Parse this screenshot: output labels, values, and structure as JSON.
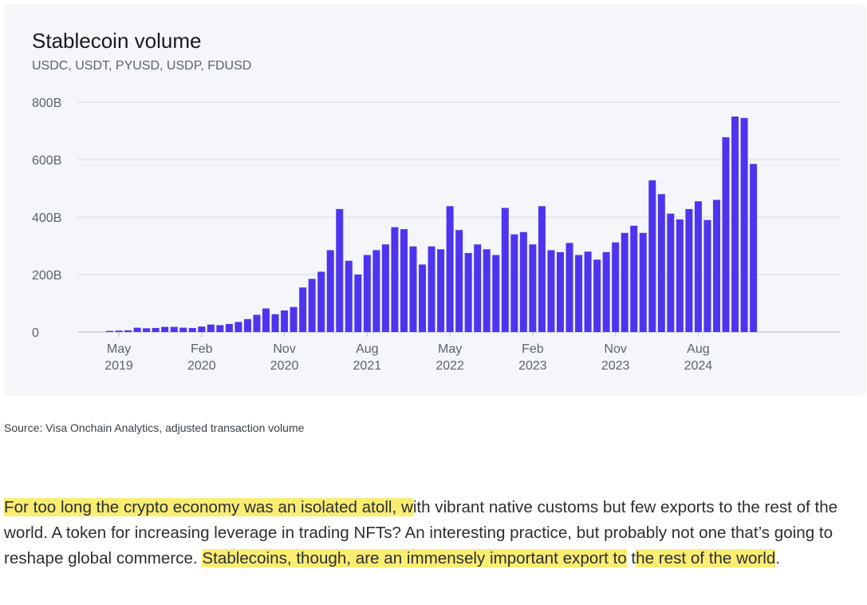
{
  "chart_data": {
    "type": "bar",
    "title": "Stablecoin volume",
    "subtitle": "USDC, USDT, PYUSD, USDP, FDUSD",
    "ylim": [
      0,
      800
    ],
    "yticks": [
      "0",
      "200B",
      "400B",
      "600B",
      "800B"
    ],
    "ytick_values": [
      0,
      200,
      400,
      600,
      800
    ],
    "xticks": [
      {
        "index": 1,
        "month": "May",
        "year": "2019"
      },
      {
        "index": 10,
        "month": "Feb",
        "year": "2020"
      },
      {
        "index": 19,
        "month": "Nov",
        "year": "2020"
      },
      {
        "index": 28,
        "month": "Aug",
        "year": "2021"
      },
      {
        "index": 37,
        "month": "May",
        "year": "2022"
      },
      {
        "index": 46,
        "month": "Feb",
        "year": "2023"
      },
      {
        "index": 55,
        "month": "Nov",
        "year": "2023"
      },
      {
        "index": 64,
        "month": "Aug",
        "year": "2024"
      }
    ],
    "series": [
      {
        "values": [
          4,
          5,
          6,
          15,
          13,
          14,
          18,
          18,
          15,
          14,
          19,
          26,
          24,
          28,
          35,
          45,
          60,
          82,
          62,
          75,
          87,
          155,
          185,
          210,
          285,
          428,
          248,
          200,
          268,
          285,
          305,
          365,
          358,
          298,
          235,
          298,
          288,
          438,
          355,
          275,
          305,
          288,
          268,
          432,
          340,
          348,
          305,
          438,
          285,
          278,
          310,
          268,
          280,
          252,
          278,
          312,
          345,
          370,
          345,
          528,
          480,
          412,
          392,
          428,
          455,
          390,
          460,
          678,
          750,
          745,
          585
        ]
      }
    ],
    "bar_color": "#4d35f0",
    "grid": true
  },
  "source": "Source: Visa Onchain Analytics, adjusted transaction volume",
  "paragraph": {
    "hl1": "For too long the crypto economy was an isolated atoll, w",
    "plain1": "ith vibrant native customs but few exports to the rest of the world. A token for increasing leverage in trading NFTs? An interesting practice, but probably not one that’s going to reshape global commerce. ",
    "hl2": "Stablecoins, though, are an immensely important export to",
    "plain2": " t",
    "hl3": "he rest of the world",
    "plain3": "."
  }
}
